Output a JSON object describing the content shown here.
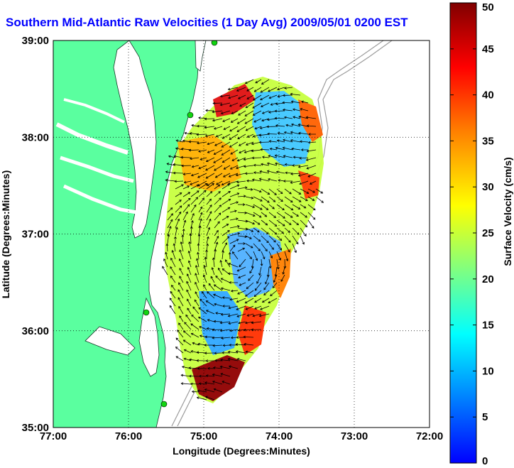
{
  "title": "Southern Mid-Atlantic Raw Velocities (1 Day Avg) 2009/05/01 0200 EST",
  "chart_data": {
    "type": "heatmap",
    "title": "Southern Mid-Atlantic Raw Velocities (1 Day Avg) 2009/05/01 0200 EST",
    "xlabel": "Longitude (Degrees:Minutes)",
    "ylabel": "Latitude (Degrees:Minutes)",
    "x_ticks": [
      "77:00",
      "76:00",
      "75:00",
      "74:00",
      "73:00",
      "72:00"
    ],
    "y_ticks": [
      "39:00",
      "38:00",
      "37:00",
      "36:00",
      "35:00"
    ],
    "xlim": [
      -77,
      -72
    ],
    "ylim": [
      35,
      39
    ],
    "grid": true,
    "colorbar": {
      "label": "Surface Velocity (cm/s)",
      "range": [
        0,
        50
      ],
      "ticks": [
        0,
        5,
        10,
        15,
        20,
        25,
        30,
        35,
        40,
        45,
        50
      ],
      "colors": [
        "#0000ff",
        "#0080ff",
        "#00ffff",
        "#80ff80",
        "#ffff00",
        "#ff8000",
        "#ff0000",
        "#800000"
      ]
    },
    "colors": {
      "land": "#5aff9f",
      "water": "#ffffff",
      "contour": "#9c9c9c",
      "station": "#11d411",
      "title": "#0000ff"
    }
  }
}
